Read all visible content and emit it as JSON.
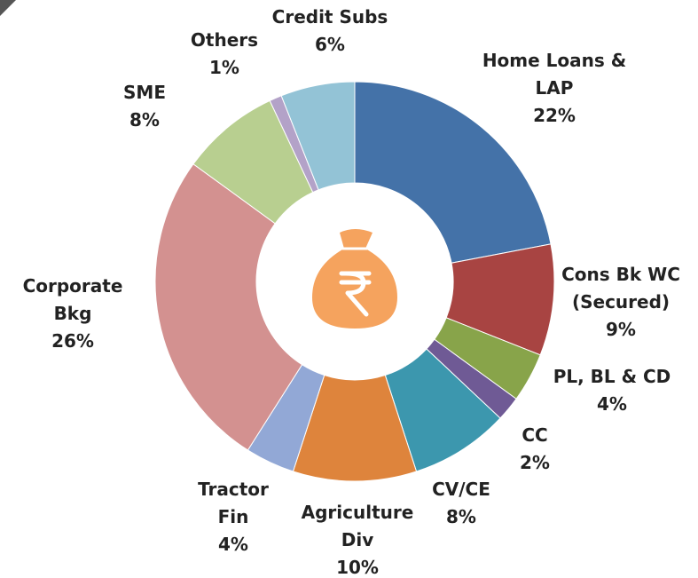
{
  "chart_data": {
    "type": "donut",
    "categories": [
      "Home Loans & LAP",
      "Cons Bk WC (Secured)",
      "PL, BL & CD",
      "CC",
      "CV/CE",
      "Agriculture Div",
      "Tractor Fin",
      "Corporate Bkg",
      "SME",
      "Others",
      "Credit Subs"
    ],
    "values": [
      22,
      9,
      4,
      2,
      8,
      10,
      4,
      26,
      8,
      1,
      6
    ],
    "value_labels": [
      "22%",
      "9%",
      "4%",
      "2%",
      "8%",
      "10%",
      "4%",
      "26%",
      "8%",
      "1%",
      "6%"
    ],
    "colors": [
      "#4472a8",
      "#a84442",
      "#88a44a",
      "#6f5a95",
      "#3c97ae",
      "#de843c",
      "#92a8d6",
      "#d39190",
      "#b8cf90",
      "#b3a2c8",
      "#93c3d6"
    ]
  }
}
